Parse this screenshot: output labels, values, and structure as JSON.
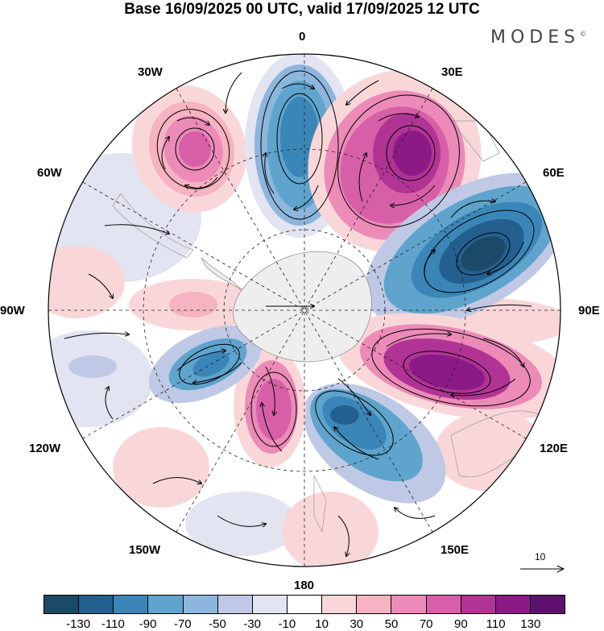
{
  "title": "Base 16/09/2025 00 UTC, valid 17/09/2025 12 UTC",
  "brand": {
    "name": "MODES",
    "mark": "©"
  },
  "longitude_labels": {
    "deg0": "0",
    "deg30e": "30E",
    "deg60e": "60E",
    "deg90e": "90E",
    "deg120e": "120E",
    "deg150e": "150E",
    "deg180": "180",
    "deg150w": "150W",
    "deg120w": "120W",
    "deg90w": "90W",
    "deg60w": "60W",
    "deg30w": "30W"
  },
  "reference_vector": {
    "label": "10"
  },
  "colorbar": {
    "colors": [
      "#1c4966",
      "#23608f",
      "#3b86b8",
      "#5ea4cc",
      "#8db6dd",
      "#bfc9e6",
      "#e2e4f1",
      "#ffffff",
      "#f9d7d9",
      "#f6b3c1",
      "#ec8bb8",
      "#d75fa8",
      "#b13495",
      "#8b1a86",
      "#5d116f"
    ],
    "labels": [
      "-130",
      "-110",
      "-90",
      "-70",
      "-50",
      "-30",
      "-10",
      "10",
      "30",
      "50",
      "70",
      "90",
      "110",
      "130"
    ]
  }
}
